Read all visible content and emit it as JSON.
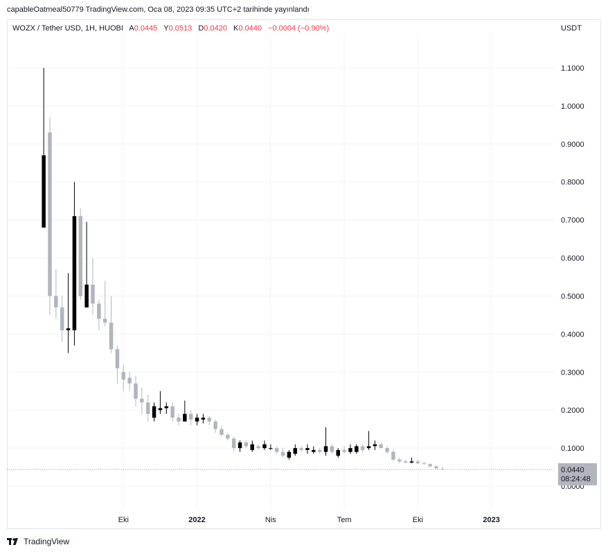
{
  "published_line": "capableOatmeal50779 TradingView.com, Oca 08, 2023 09:35 UTC+2 tarihinde yayınlandı",
  "legend": {
    "symbol": "WOZX / Tether USD, 1H, HUOBI",
    "open_label": "A",
    "open_value": "0.0445",
    "high_label": "Y",
    "high_value": "0.0513",
    "low_label": "D",
    "low_value": "0.0420",
    "close_label": "K",
    "close_value": "0.0440",
    "change": "−0.0004 (−0.90%)"
  },
  "axis_unit": "USDT",
  "price_badge": {
    "value": "0.0440",
    "countdown": "08:24:48"
  },
  "footer": {
    "brand": "TradingView"
  },
  "colors": {
    "up": "#000000",
    "down": "#b2b5be",
    "grid": "#f0f3fa",
    "change": "#f23645",
    "badge": "#b2b5be"
  },
  "chart_data": {
    "type": "candlestick",
    "y_ticks": [
      "0.0000",
      "0.1000",
      "0.2000",
      "0.3000",
      "0.4000",
      "0.5000",
      "0.6000",
      "0.7000",
      "0.8000",
      "0.9000",
      "1.0000",
      "1.1000"
    ],
    "ylim": [
      -0.06,
      1.2
    ],
    "x_ticks": [
      {
        "label": "Eki",
        "t": 3.25
      },
      {
        "label": "2022",
        "t": 6.25
      },
      {
        "label": "Nis",
        "t": 9.25
      },
      {
        "label": "Tem",
        "t": 12.25
      },
      {
        "label": "Eki",
        "t": 15.25
      },
      {
        "label": "2023",
        "t": 18.25
      }
    ],
    "t_step": 0.25,
    "xlim": [
      -1.5,
      20.8
    ],
    "candles": [
      [
        0.68,
        1.1,
        0.68,
        0.87
      ],
      [
        0.93,
        0.97,
        0.45,
        0.5
      ],
      [
        0.5,
        0.57,
        0.44,
        0.47
      ],
      [
        0.47,
        0.5,
        0.38,
        0.41
      ],
      [
        0.41,
        0.56,
        0.35,
        0.415
      ],
      [
        0.41,
        0.8,
        0.37,
        0.71
      ],
      [
        0.71,
        0.73,
        0.49,
        0.5
      ],
      [
        0.47,
        0.695,
        0.47,
        0.53
      ],
      [
        0.53,
        0.6,
        0.45,
        0.48
      ],
      [
        0.48,
        0.49,
        0.41,
        0.44
      ],
      [
        0.44,
        0.54,
        0.42,
        0.43
      ],
      [
        0.43,
        0.5,
        0.35,
        0.36
      ],
      [
        0.36,
        0.37,
        0.27,
        0.31
      ],
      [
        0.3,
        0.32,
        0.25,
        0.28
      ],
      [
        0.285,
        0.3,
        0.25,
        0.27
      ],
      [
        0.27,
        0.29,
        0.21,
        0.23
      ],
      [
        0.23,
        0.26,
        0.19,
        0.22
      ],
      [
        0.22,
        0.24,
        0.17,
        0.19
      ],
      [
        0.18,
        0.22,
        0.17,
        0.21
      ],
      [
        0.2,
        0.25,
        0.19,
        0.205
      ],
      [
        0.205,
        0.22,
        0.19,
        0.21
      ],
      [
        0.21,
        0.22,
        0.17,
        0.18
      ],
      [
        0.18,
        0.19,
        0.16,
        0.17
      ],
      [
        0.17,
        0.225,
        0.17,
        0.19
      ],
      [
        0.19,
        0.2,
        0.16,
        0.175
      ],
      [
        0.17,
        0.19,
        0.16,
        0.18
      ],
      [
        0.175,
        0.19,
        0.165,
        0.18
      ],
      [
        0.18,
        0.185,
        0.16,
        0.17
      ],
      [
        0.17,
        0.175,
        0.14,
        0.15
      ],
      [
        0.15,
        0.16,
        0.13,
        0.135
      ],
      [
        0.135,
        0.14,
        0.12,
        0.125
      ],
      [
        0.125,
        0.13,
        0.09,
        0.1
      ],
      [
        0.1,
        0.12,
        0.09,
        0.115
      ],
      [
        0.115,
        0.12,
        0.1,
        0.105
      ],
      [
        0.095,
        0.12,
        0.09,
        0.11
      ],
      [
        0.105,
        0.11,
        0.095,
        0.1
      ],
      [
        0.1,
        0.12,
        0.095,
        0.11
      ],
      [
        0.1,
        0.11,
        0.095,
        0.1
      ],
      [
        0.1,
        0.105,
        0.085,
        0.09
      ],
      [
        0.09,
        0.1,
        0.075,
        0.08
      ],
      [
        0.075,
        0.095,
        0.07,
        0.09
      ],
      [
        0.085,
        0.11,
        0.08,
        0.1
      ],
      [
        0.1,
        0.105,
        0.09,
        0.095
      ],
      [
        0.095,
        0.11,
        0.085,
        0.1
      ],
      [
        0.09,
        0.105,
        0.085,
        0.095
      ],
      [
        0.095,
        0.1,
        0.085,
        0.09
      ],
      [
        0.09,
        0.155,
        0.08,
        0.105
      ],
      [
        0.105,
        0.11,
        0.085,
        0.09
      ],
      [
        0.08,
        0.1,
        0.075,
        0.095
      ],
      [
        0.095,
        0.105,
        0.085,
        0.09
      ],
      [
        0.09,
        0.11,
        0.085,
        0.1
      ],
      [
        0.09,
        0.11,
        0.085,
        0.105
      ],
      [
        0.105,
        0.11,
        0.09,
        0.095
      ],
      [
        0.1,
        0.145,
        0.095,
        0.105
      ],
      [
        0.105,
        0.12,
        0.095,
        0.11
      ],
      [
        0.11,
        0.115,
        0.1,
        0.1
      ],
      [
        0.1,
        0.105,
        0.085,
        0.09
      ],
      [
        0.09,
        0.095,
        0.065,
        0.07
      ],
      [
        0.07,
        0.075,
        0.06,
        0.065
      ],
      [
        0.065,
        0.07,
        0.06,
        0.062
      ],
      [
        0.062,
        0.075,
        0.06,
        0.065
      ],
      [
        0.065,
        0.07,
        0.058,
        0.06
      ],
      [
        0.06,
        0.065,
        0.056,
        0.058
      ],
      [
        0.058,
        0.06,
        0.05,
        0.052
      ],
      [
        0.052,
        0.055,
        0.045,
        0.047
      ],
      [
        0.0445,
        0.0513,
        0.042,
        0.044
      ]
    ],
    "last_price": 0.044
  }
}
